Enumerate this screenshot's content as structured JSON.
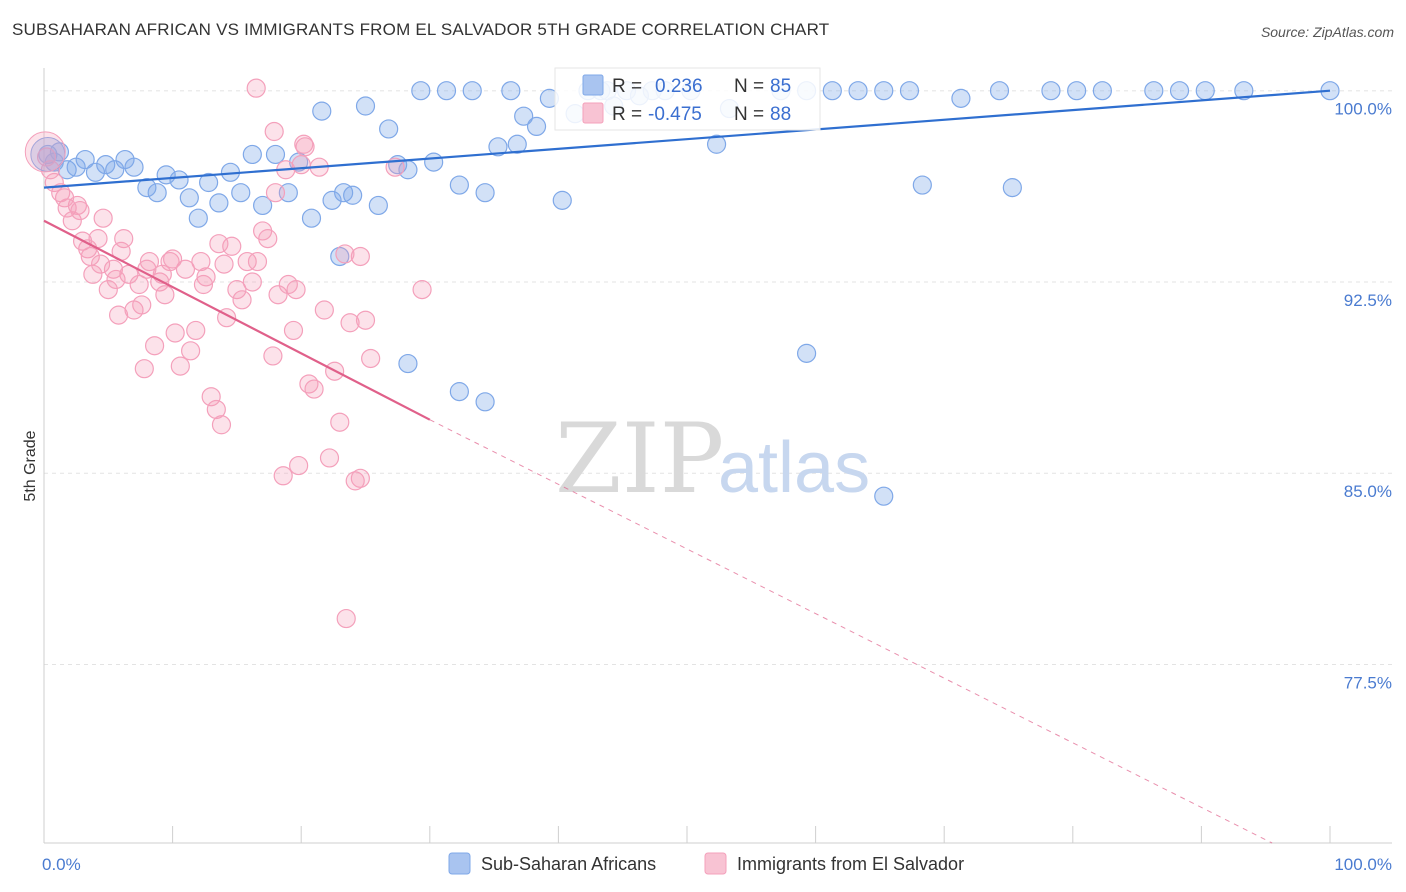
{
  "header": {
    "title": "SUBSAHARAN AFRICAN VS IMMIGRANTS FROM EL SALVADOR 5TH GRADE CORRELATION CHART",
    "source": "Source: ZipAtlas.com"
  },
  "legend": {
    "r_label": "R =",
    "n_label": "N =",
    "blue": {
      "r": "0.236",
      "n": "85"
    },
    "pink": {
      "r": "-0.475",
      "n": "88"
    }
  },
  "watermark": {
    "zip": "ZIP",
    "atlas": "atlas"
  },
  "chart_data": {
    "type": "scatter",
    "title": "SUBSAHARAN AFRICAN VS IMMIGRANTS FROM EL SALVADOR 5TH GRADE CORRELATION CHART",
    "xlabel": "",
    "ylabel": "5th Grade",
    "xlim": [
      0,
      100
    ],
    "ylim": [
      70.5,
      101.4
    ],
    "x_tick_labels": [
      "0.0%",
      "100.0%"
    ],
    "y_ticks": [
      77.5,
      85.0,
      92.5,
      100.0
    ],
    "y_tick_labels": [
      "77.5%",
      "85.0%",
      "92.5%",
      "100.0%"
    ],
    "grid": true,
    "legend_placement": "top-center",
    "colors": {
      "blue": "#7fa8e8",
      "blue_line": "#2f6fd0",
      "pink": "#f4a0bb",
      "pink_line": "#e0608a"
    },
    "series": [
      {
        "name": "Sub-Saharan Africans",
        "color": "#7fa8e8",
        "trend": {
          "x0": 0,
          "y0": 96.2,
          "x1": 100,
          "y1": 100.0
        },
        "points": [
          [
            0.3,
            97.5
          ],
          [
            0.8,
            97.2
          ],
          [
            1.2,
            97.6
          ],
          [
            1.8,
            96.9
          ],
          [
            2.5,
            97.0
          ],
          [
            3.2,
            97.3
          ],
          [
            4.0,
            96.8
          ],
          [
            4.8,
            97.1
          ],
          [
            5.5,
            96.9
          ],
          [
            6.3,
            97.3
          ],
          [
            7.0,
            97.0
          ],
          [
            8.0,
            96.2
          ],
          [
            8.8,
            96.0
          ],
          [
            9.5,
            96.7
          ],
          [
            10.5,
            96.5
          ],
          [
            11.3,
            95.8
          ],
          [
            12.0,
            95.0
          ],
          [
            12.8,
            96.4
          ],
          [
            13.6,
            95.6
          ],
          [
            14.5,
            96.8
          ],
          [
            15.3,
            96.0
          ],
          [
            16.2,
            97.5
          ],
          [
            17.0,
            95.5
          ],
          [
            18.0,
            97.5
          ],
          [
            19.0,
            96.0
          ],
          [
            19.8,
            97.2
          ],
          [
            20.8,
            95.0
          ],
          [
            21.6,
            99.2
          ],
          [
            22.4,
            95.7
          ],
          [
            23.3,
            96.0
          ],
          [
            24.0,
            95.9
          ],
          [
            25.0,
            99.4
          ],
          [
            26.0,
            95.5
          ],
          [
            26.8,
            98.5
          ],
          [
            27.5,
            97.1
          ],
          [
            28.3,
            96.9
          ],
          [
            29.3,
            100.0
          ],
          [
            30.3,
            97.2
          ],
          [
            31.3,
            100.0
          ],
          [
            32.3,
            96.3
          ],
          [
            33.3,
            100.0
          ],
          [
            34.3,
            96.0
          ],
          [
            35.3,
            97.8
          ],
          [
            36.3,
            100.0
          ],
          [
            37.3,
            99.0
          ],
          [
            38.3,
            98.6
          ],
          [
            39.3,
            99.7
          ],
          [
            40.3,
            95.7
          ],
          [
            41.3,
            99.1
          ],
          [
            42.3,
            100.0
          ],
          [
            43.3,
            100.0
          ],
          [
            44.3,
            99.4
          ],
          [
            45.3,
            100.0
          ],
          [
            46.3,
            99.8
          ],
          [
            47.3,
            100.0
          ],
          [
            48.3,
            100.0
          ],
          [
            52.3,
            97.9
          ],
          [
            53.3,
            99.3
          ],
          [
            57.3,
            100.0
          ],
          [
            59.3,
            100.0
          ],
          [
            61.3,
            100.0
          ],
          [
            63.3,
            100.0
          ],
          [
            65.3,
            100.0
          ],
          [
            67.3,
            100.0
          ],
          [
            71.3,
            99.7
          ],
          [
            74.3,
            100.0
          ],
          [
            78.3,
            100.0
          ],
          [
            82.3,
            100.0
          ],
          [
            86.3,
            100.0
          ],
          [
            90.3,
            100.0
          ],
          [
            93.3,
            100.0
          ],
          [
            100.0,
            100.0
          ],
          [
            23.0,
            93.5
          ],
          [
            28.3,
            89.3
          ],
          [
            32.3,
            88.2
          ],
          [
            34.3,
            87.8
          ],
          [
            59.3,
            89.7
          ],
          [
            65.3,
            84.1
          ],
          [
            68.3,
            96.3
          ],
          [
            75.3,
            96.2
          ],
          [
            80.3,
            100.0
          ],
          [
            50.3,
            100.0
          ],
          [
            88.3,
            100.0
          ],
          [
            43.8,
            100.0
          ],
          [
            36.8,
            97.9
          ]
        ]
      },
      {
        "name": "Immigrants from El Salvador",
        "color": "#f4a0bb",
        "trend": {
          "x0": 0,
          "y0": 94.9,
          "x1": 30,
          "y1": 87.1
        },
        "trend_dashed_to": {
          "x": 95.5,
          "y": 70.5
        },
        "points": [
          [
            0.2,
            97.4
          ],
          [
            0.8,
            96.4
          ],
          [
            1.3,
            96.0
          ],
          [
            1.8,
            95.4
          ],
          [
            2.2,
            94.9
          ],
          [
            2.6,
            95.5
          ],
          [
            3.0,
            94.1
          ],
          [
            3.4,
            93.8
          ],
          [
            3.8,
            92.8
          ],
          [
            4.2,
            94.2
          ],
          [
            4.6,
            95.0
          ],
          [
            5.0,
            92.2
          ],
          [
            5.4,
            93.0
          ],
          [
            5.8,
            91.2
          ],
          [
            6.2,
            94.2
          ],
          [
            6.6,
            92.8
          ],
          [
            7.0,
            91.4
          ],
          [
            7.4,
            92.4
          ],
          [
            7.8,
            89.1
          ],
          [
            8.2,
            93.3
          ],
          [
            8.6,
            90.0
          ],
          [
            9.0,
            92.5
          ],
          [
            9.4,
            92.0
          ],
          [
            9.8,
            93.3
          ],
          [
            10.2,
            90.5
          ],
          [
            10.6,
            89.2
          ],
          [
            11.0,
            93.0
          ],
          [
            11.4,
            89.8
          ],
          [
            11.8,
            90.6
          ],
          [
            12.2,
            93.3
          ],
          [
            12.6,
            92.7
          ],
          [
            13.0,
            88.0
          ],
          [
            13.4,
            87.5
          ],
          [
            13.8,
            86.9
          ],
          [
            14.2,
            91.1
          ],
          [
            14.6,
            93.9
          ],
          [
            15.0,
            92.2
          ],
          [
            15.4,
            91.8
          ],
          [
            15.8,
            93.3
          ],
          [
            16.2,
            92.5
          ],
          [
            16.6,
            93.3
          ],
          [
            17.0,
            94.5
          ],
          [
            17.4,
            94.2
          ],
          [
            17.8,
            89.6
          ],
          [
            18.2,
            92.0
          ],
          [
            18.6,
            84.9
          ],
          [
            19.0,
            92.4
          ],
          [
            19.4,
            90.6
          ],
          [
            19.8,
            85.3
          ],
          [
            20.2,
            97.9
          ],
          [
            20.6,
            88.5
          ],
          [
            21.0,
            88.3
          ],
          [
            21.4,
            97.0
          ],
          [
            21.8,
            91.4
          ],
          [
            22.2,
            85.6
          ],
          [
            22.6,
            89.0
          ],
          [
            23.0,
            87.0
          ],
          [
            23.4,
            93.6
          ],
          [
            23.8,
            90.9
          ],
          [
            24.2,
            84.7
          ],
          [
            24.6,
            84.8
          ],
          [
            25.0,
            91.0
          ],
          [
            25.4,
            89.5
          ],
          [
            19.6,
            92.2
          ],
          [
            16.5,
            100.1
          ],
          [
            17.9,
            98.4
          ],
          [
            27.3,
            97.0
          ],
          [
            24.6,
            93.5
          ],
          [
            29.4,
            92.2
          ],
          [
            20.0,
            97.1
          ],
          [
            18.0,
            96.0
          ],
          [
            12.4,
            92.4
          ],
          [
            10.0,
            93.4
          ],
          [
            7.6,
            91.6
          ],
          [
            5.6,
            92.6
          ],
          [
            3.6,
            93.5
          ],
          [
            1.6,
            95.8
          ],
          [
            2.8,
            95.3
          ],
          [
            4.4,
            93.2
          ],
          [
            6.0,
            93.7
          ],
          [
            8.0,
            93.0
          ],
          [
            14.0,
            93.2
          ],
          [
            20.3,
            97.8
          ],
          [
            23.5,
            79.3
          ],
          [
            18.8,
            96.9
          ],
          [
            13.6,
            94.0
          ],
          [
            9.2,
            92.8
          ],
          [
            0.5,
            96.9
          ]
        ]
      }
    ]
  },
  "bottom_legend": {
    "items": [
      {
        "label": "Sub-Saharan Africans",
        "color": "#a9c4f0",
        "border": "#7fa8e8"
      },
      {
        "label": "Immigrants from El Salvador",
        "color": "#f8c3d3",
        "border": "#f4a0bb"
      }
    ]
  }
}
